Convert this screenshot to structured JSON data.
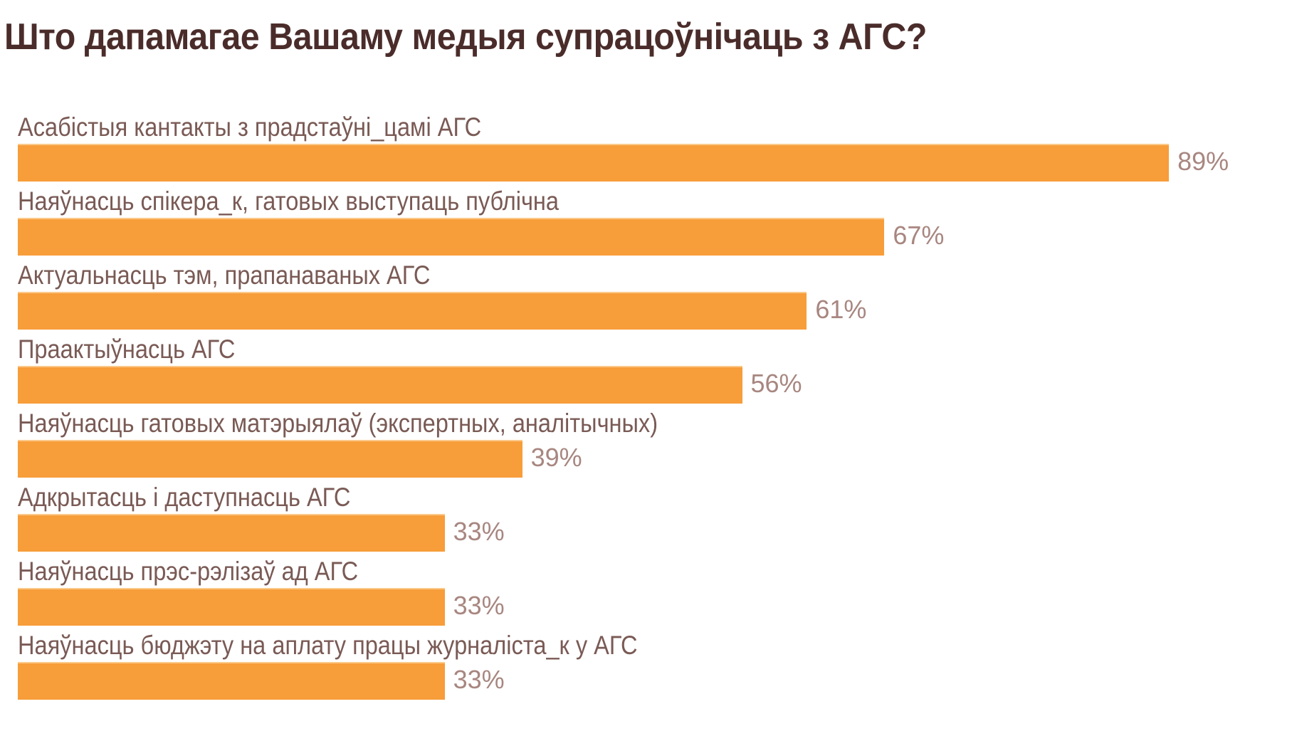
{
  "title": "Што дапамагае Вашаму медыя супрацоўнічаць з АГС?",
  "colors": {
    "bar": "#f79d3a",
    "title": "#4a2c2a",
    "label": "#7a5a55",
    "value": "#a88680"
  },
  "items": [
    {
      "label": "Асабістыя кантакты з прадстаўні_цамі АГС",
      "value": 89,
      "display": "89%"
    },
    {
      "label": "Наяўнасць спікера_к, гатовых выступаць публічна",
      "value": 67,
      "display": "67%"
    },
    {
      "label": "Актуальнасць тэм, прапанаваных АГС",
      "value": 61,
      "display": "61%"
    },
    {
      "label": "Праактыўнасць АГС",
      "value": 56,
      "display": "56%"
    },
    {
      "label": "Наяўнасць гатовых матэрыялаў (экспертных, аналітычных)",
      "value": 39,
      "display": "39%"
    },
    {
      "label": "Адкрытасць і даступнасць АГС",
      "value": 33,
      "display": "33%"
    },
    {
      "label": "Наяўнасць прэс-рэлізаў ад АГС",
      "value": 33,
      "display": "33%"
    },
    {
      "label": "Наяўнасць бюджэту на аплату працы журналіста_к у АГС",
      "value": 33,
      "display": "33%"
    }
  ],
  "chart_data": {
    "type": "bar",
    "orientation": "horizontal",
    "title": "Што дапамагае Вашаму медыя супрацоўнічаць з АГС?",
    "categories": [
      "Асабістыя кантакты з прадстаўні_цамі АГС",
      "Наяўнасць спікера_к, гатовых выступаць публічна",
      "Актуальнасць тэм, прапанаваных АГС",
      "Праактыўнасць АГС",
      "Наяўнасць гатовых матэрыялаў (экспертных, аналітычных)",
      "Адкрытасць і даступнасць АГС",
      "Наяўнасць прэс-рэлізаў ад АГС",
      "Наяўнасць бюджэту на аплату працы журналіста_к у АГС"
    ],
    "values": [
      89,
      67,
      61,
      56,
      39,
      33,
      33,
      33
    ],
    "unit": "%",
    "xlabel": "",
    "ylabel": "",
    "xlim": [
      0,
      100
    ],
    "grid": false,
    "legend": null,
    "data_labels": true
  }
}
